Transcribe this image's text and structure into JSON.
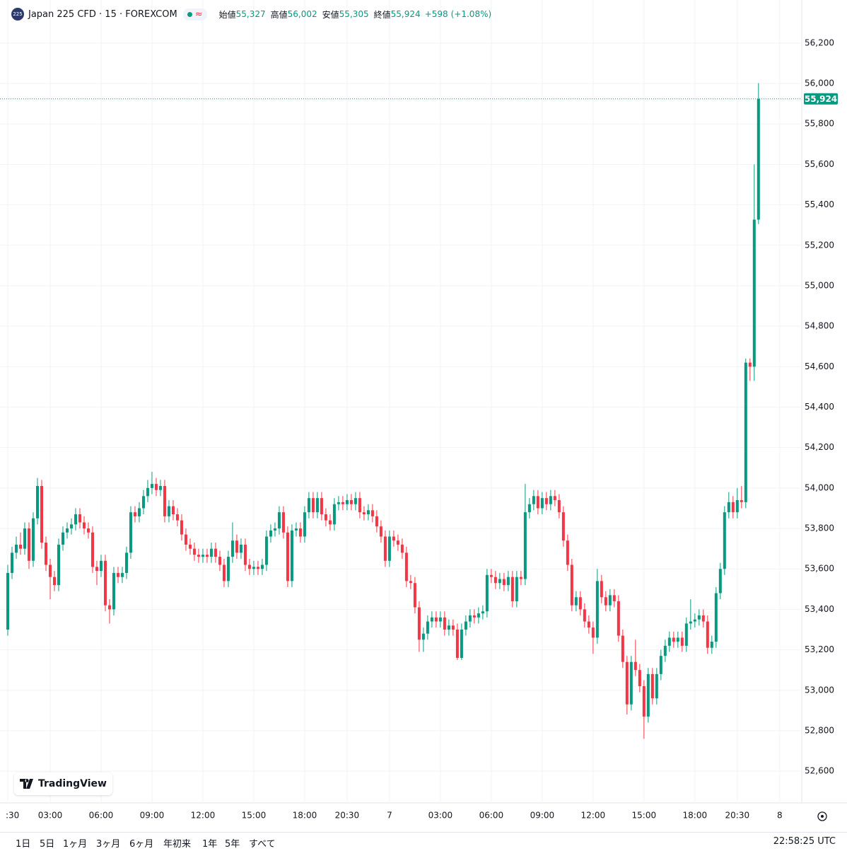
{
  "chart_data": {
    "type": "candlestick",
    "badge": "225",
    "title": "Japan 225 CFD · 15 · FOREXCOM",
    "ohlc_names": [
      "始値",
      "高値",
      "安値",
      "終値"
    ],
    "ohlc_labels": [
      "55,327",
      "56,002",
      "55,305",
      "55,924"
    ],
    "change_label": "+598",
    "change_pct_label": "(+1.08%)",
    "last_price_label": "55,924",
    "up_color": "#089981",
    "down_color": "#f23645",
    "grid": true,
    "ylim": [
      52443,
      56308
    ],
    "yticks": [
      {
        "value": 52600,
        "label": "52,600"
      },
      {
        "value": 52800,
        "label": "52,800"
      },
      {
        "value": 53000,
        "label": "53,000"
      },
      {
        "value": 53200,
        "label": "53,200"
      },
      {
        "value": 53400,
        "label": "53,400"
      },
      {
        "value": 53600,
        "label": "53,600"
      },
      {
        "value": 53800,
        "label": "53,800"
      },
      {
        "value": 54000,
        "label": "54,000"
      },
      {
        "value": 54200,
        "label": "54,200"
      },
      {
        "value": 54400,
        "label": "54,400"
      },
      {
        "value": 54600,
        "label": "54,600"
      },
      {
        "value": 54800,
        "label": "54,800"
      },
      {
        "value": 55000,
        "label": "55,000"
      },
      {
        "value": 55200,
        "label": "55,200"
      },
      {
        "value": 55400,
        "label": "55,400"
      },
      {
        "value": 55600,
        "label": "55,600"
      },
      {
        "value": 55800,
        "label": "55,800"
      },
      {
        "value": 56000,
        "label": "56,000"
      },
      {
        "value": 56200,
        "label": "56,200"
      }
    ],
    "xlim": [
      -0.5,
      187.2
    ],
    "xticks": [
      {
        "value": 0,
        "label": ":30"
      },
      {
        "value": 10,
        "label": "03:00"
      },
      {
        "value": 22,
        "label": "06:00"
      },
      {
        "value": 34,
        "label": "09:00"
      },
      {
        "value": 46,
        "label": "12:00"
      },
      {
        "value": 58,
        "label": "15:00"
      },
      {
        "value": 70,
        "label": "18:00"
      },
      {
        "value": 80,
        "label": "20:30"
      },
      {
        "value": 90,
        "label": "7"
      },
      {
        "value": 102,
        "label": "03:00"
      },
      {
        "value": 114,
        "label": "06:00"
      },
      {
        "value": 126,
        "label": "09:00"
      },
      {
        "value": 138,
        "label": "12:00"
      },
      {
        "value": 150,
        "label": "15:00"
      },
      {
        "value": 162,
        "label": "18:00"
      },
      {
        "value": 172,
        "label": "20:30"
      },
      {
        "value": 182,
        "label": "8"
      }
    ],
    "candles": [
      [
        53300,
        53620,
        53270,
        53580
      ],
      [
        53580,
        53710,
        53550,
        53680
      ],
      [
        53680,
        53760,
        53650,
        53720
      ],
      [
        53720,
        53780,
        53670,
        53700
      ],
      [
        53700,
        53830,
        53670,
        53800
      ],
      [
        53800,
        53830,
        53600,
        53640
      ],
      [
        53640,
        53880,
        53610,
        53850
      ],
      [
        53850,
        54050,
        53820,
        54010
      ],
      [
        54010,
        54040,
        53700,
        53730
      ],
      [
        53730,
        53760,
        53590,
        53620
      ],
      [
        53620,
        53650,
        53450,
        53560
      ],
      [
        53560,
        53590,
        53490,
        53520
      ],
      [
        53520,
        53750,
        53490,
        53720
      ],
      [
        53720,
        53810,
        53690,
        53780
      ],
      [
        53780,
        53830,
        53750,
        53800
      ],
      [
        53800,
        53850,
        53770,
        53820
      ],
      [
        53820,
        53900,
        53790,
        53870
      ],
      [
        53870,
        53900,
        53800,
        53830
      ],
      [
        53830,
        53860,
        53770,
        53800
      ],
      [
        53800,
        53830,
        53750,
        53780
      ],
      [
        53780,
        53810,
        53580,
        53610
      ],
      [
        53610,
        53640,
        53520,
        53590
      ],
      [
        53590,
        53670,
        53560,
        53640
      ],
      [
        53640,
        53670,
        53390,
        53420
      ],
      [
        53420,
        53450,
        53330,
        53400
      ],
      [
        53400,
        53610,
        53370,
        53580
      ],
      [
        53580,
        53610,
        53530,
        53560
      ],
      [
        53560,
        53610,
        53530,
        53580
      ],
      [
        53580,
        53710,
        53550,
        53680
      ],
      [
        53680,
        53910,
        53650,
        53880
      ],
      [
        53880,
        53910,
        53830,
        53860
      ],
      [
        53860,
        53930,
        53830,
        53900
      ],
      [
        53900,
        53990,
        53870,
        53960
      ],
      [
        53960,
        54040,
        53930,
        54000
      ],
      [
        54000,
        54080,
        53970,
        54020
      ],
      [
        54020,
        54050,
        53960,
        53990
      ],
      [
        53990,
        54040,
        53960,
        54010
      ],
      [
        54010,
        54040,
        53830,
        53860
      ],
      [
        53860,
        53940,
        53830,
        53910
      ],
      [
        53910,
        53940,
        53840,
        53870
      ],
      [
        53870,
        53900,
        53810,
        53840
      ],
      [
        53840,
        53870,
        53740,
        53770
      ],
      [
        53770,
        53800,
        53690,
        53720
      ],
      [
        53720,
        53750,
        53670,
        53700
      ],
      [
        53700,
        53730,
        53640,
        53670
      ],
      [
        53670,
        53700,
        53630,
        53660
      ],
      [
        53660,
        53700,
        53630,
        53670
      ],
      [
        53670,
        53700,
        53630,
        53660
      ],
      [
        53660,
        53730,
        53630,
        53700
      ],
      [
        53700,
        53730,
        53630,
        53660
      ],
      [
        53660,
        53690,
        53590,
        53620
      ],
      [
        53620,
        53650,
        53510,
        53540
      ],
      [
        53540,
        53690,
        53510,
        53660
      ],
      [
        53660,
        53830,
        53630,
        53740
      ],
      [
        53740,
        53770,
        53650,
        53680
      ],
      [
        53680,
        53750,
        53650,
        53720
      ],
      [
        53720,
        53750,
        53590,
        53620
      ],
      [
        53620,
        53650,
        53570,
        53600
      ],
      [
        53600,
        53640,
        53570,
        53610
      ],
      [
        53610,
        53640,
        53570,
        53600
      ],
      [
        53600,
        53650,
        53570,
        53620
      ],
      [
        53620,
        53790,
        53590,
        53760
      ],
      [
        53760,
        53820,
        53730,
        53790
      ],
      [
        53790,
        53830,
        53760,
        53800
      ],
      [
        53800,
        53910,
        53770,
        53880
      ],
      [
        53880,
        53910,
        53750,
        53780
      ],
      [
        53780,
        53810,
        53510,
        53540
      ],
      [
        53540,
        53820,
        53510,
        53790
      ],
      [
        53790,
        53830,
        53760,
        53800
      ],
      [
        53800,
        53830,
        53730,
        53760
      ],
      [
        53760,
        53910,
        53730,
        53880
      ],
      [
        53880,
        53980,
        53850,
        53950
      ],
      [
        53950,
        53980,
        53850,
        53880
      ],
      [
        53880,
        53980,
        53850,
        53950
      ],
      [
        53950,
        53980,
        53840,
        53870
      ],
      [
        53870,
        53900,
        53810,
        53840
      ],
      [
        53840,
        53870,
        53790,
        53820
      ],
      [
        53820,
        53950,
        53790,
        53920
      ],
      [
        53920,
        53960,
        53890,
        53930
      ],
      [
        53930,
        53960,
        53890,
        53920
      ],
      [
        53920,
        53970,
        53890,
        53940
      ],
      [
        53940,
        53970,
        53890,
        53920
      ],
      [
        53920,
        53980,
        53890,
        53950
      ],
      [
        53950,
        53980,
        53850,
        53880
      ],
      [
        53880,
        53910,
        53840,
        53870
      ],
      [
        53870,
        53920,
        53840,
        53890
      ],
      [
        53890,
        53920,
        53830,
        53860
      ],
      [
        53860,
        53890,
        53780,
        53810
      ],
      [
        53810,
        53840,
        53730,
        53760
      ],
      [
        53760,
        53790,
        53610,
        53640
      ],
      [
        53640,
        53790,
        53610,
        53760
      ],
      [
        53760,
        53790,
        53710,
        53740
      ],
      [
        53740,
        53770,
        53690,
        53720
      ],
      [
        53720,
        53750,
        53650,
        53680
      ],
      [
        53680,
        53710,
        53510,
        53540
      ],
      [
        53540,
        53570,
        53500,
        53530
      ],
      [
        53530,
        53560,
        53380,
        53410
      ],
      [
        53410,
        53440,
        53190,
        53250
      ],
      [
        53250,
        53310,
        53190,
        53280
      ],
      [
        53280,
        53370,
        53250,
        53340
      ],
      [
        53340,
        53390,
        53310,
        53360
      ],
      [
        53360,
        53390,
        53310,
        53340
      ],
      [
        53340,
        53390,
        53310,
        53360
      ],
      [
        53360,
        53390,
        53270,
        53300
      ],
      [
        53300,
        53350,
        53270,
        53320
      ],
      [
        53320,
        53350,
        53270,
        53300
      ],
      [
        53300,
        53330,
        53150,
        53160
      ],
      [
        53160,
        53330,
        53150,
        53300
      ],
      [
        53300,
        53370,
        53270,
        53340
      ],
      [
        53340,
        53400,
        53310,
        53370
      ],
      [
        53370,
        53400,
        53330,
        53360
      ],
      [
        53360,
        53410,
        53330,
        53380
      ],
      [
        53380,
        53420,
        53350,
        53390
      ],
      [
        53390,
        53600,
        53360,
        53570
      ],
      [
        53570,
        53600,
        53530,
        53560
      ],
      [
        53560,
        53590,
        53500,
        53530
      ],
      [
        53530,
        53580,
        53500,
        53550
      ],
      [
        53550,
        53580,
        53490,
        53520
      ],
      [
        53520,
        53590,
        53490,
        53560
      ],
      [
        53560,
        53590,
        53410,
        53440
      ],
      [
        53440,
        53590,
        53410,
        53560
      ],
      [
        53560,
        53590,
        53520,
        53550
      ],
      [
        53550,
        54020,
        53520,
        53880
      ],
      [
        53880,
        53950,
        53850,
        53920
      ],
      [
        53920,
        53990,
        53890,
        53960
      ],
      [
        53960,
        53990,
        53870,
        53900
      ],
      [
        53900,
        53980,
        53870,
        53950
      ],
      [
        53950,
        53980,
        53890,
        53920
      ],
      [
        53920,
        53990,
        53890,
        53960
      ],
      [
        53960,
        53990,
        53910,
        53940
      ],
      [
        53940,
        53970,
        53850,
        53880
      ],
      [
        53880,
        53910,
        53710,
        53740
      ],
      [
        53740,
        53770,
        53590,
        53620
      ],
      [
        53620,
        53650,
        53390,
        53420
      ],
      [
        53420,
        53490,
        53390,
        53460
      ],
      [
        53460,
        53490,
        53370,
        53400
      ],
      [
        53400,
        53430,
        53310,
        53340
      ],
      [
        53340,
        53370,
        53280,
        53310
      ],
      [
        53310,
        53340,
        53180,
        53260
      ],
      [
        53260,
        53600,
        53230,
        53540
      ],
      [
        53540,
        53570,
        53430,
        53460
      ],
      [
        53460,
        53490,
        53390,
        53420
      ],
      [
        53420,
        53500,
        53390,
        53470
      ],
      [
        53470,
        53500,
        53410,
        53440
      ],
      [
        53440,
        53470,
        53240,
        53270
      ],
      [
        53270,
        53300,
        53110,
        53140
      ],
      [
        53140,
        53170,
        52880,
        52930
      ],
      [
        52930,
        53170,
        52900,
        53140
      ],
      [
        53140,
        53250,
        53070,
        53100
      ],
      [
        53100,
        53130,
        52990,
        53020
      ],
      [
        53020,
        53050,
        52760,
        52870
      ],
      [
        52870,
        53110,
        52840,
        53080
      ],
      [
        53080,
        53110,
        52930,
        52960
      ],
      [
        52960,
        53110,
        52930,
        53080
      ],
      [
        53080,
        53200,
        53050,
        53170
      ],
      [
        53170,
        53250,
        53140,
        53220
      ],
      [
        53220,
        53290,
        53190,
        53260
      ],
      [
        53260,
        53290,
        53210,
        53240
      ],
      [
        53240,
        53290,
        53210,
        53260
      ],
      [
        53260,
        53290,
        53190,
        53220
      ],
      [
        53220,
        53360,
        53190,
        53330
      ],
      [
        53330,
        53450,
        53300,
        53340
      ],
      [
        53340,
        53380,
        53310,
        53350
      ],
      [
        53350,
        53400,
        53320,
        53370
      ],
      [
        53370,
        53400,
        53310,
        53340
      ],
      [
        53340,
        53370,
        53180,
        53210
      ],
      [
        53210,
        53270,
        53180,
        53240
      ],
      [
        53240,
        53510,
        53210,
        53480
      ],
      [
        53480,
        53630,
        53450,
        53600
      ],
      [
        53600,
        53910,
        53570,
        53880
      ],
      [
        53880,
        53980,
        53850,
        53930
      ],
      [
        53930,
        53960,
        53850,
        53880
      ],
      [
        53880,
        54000,
        53850,
        53940
      ],
      [
        53940,
        54010,
        53900,
        53930
      ],
      [
        53930,
        54640,
        53900,
        54620
      ],
      [
        54620,
        54640,
        54530,
        54600
      ],
      [
        54600,
        55600,
        54530,
        55327
      ],
      [
        55327,
        56002,
        55305,
        55924
      ]
    ],
    "logo": "TradingView",
    "ranges": [
      "1日",
      "5日",
      "1ヶ月",
      "3ヶ月",
      "6ヶ月",
      "年初来",
      "1年",
      "5年",
      "すべて"
    ],
    "clock": "22:58:25 UTC"
  }
}
